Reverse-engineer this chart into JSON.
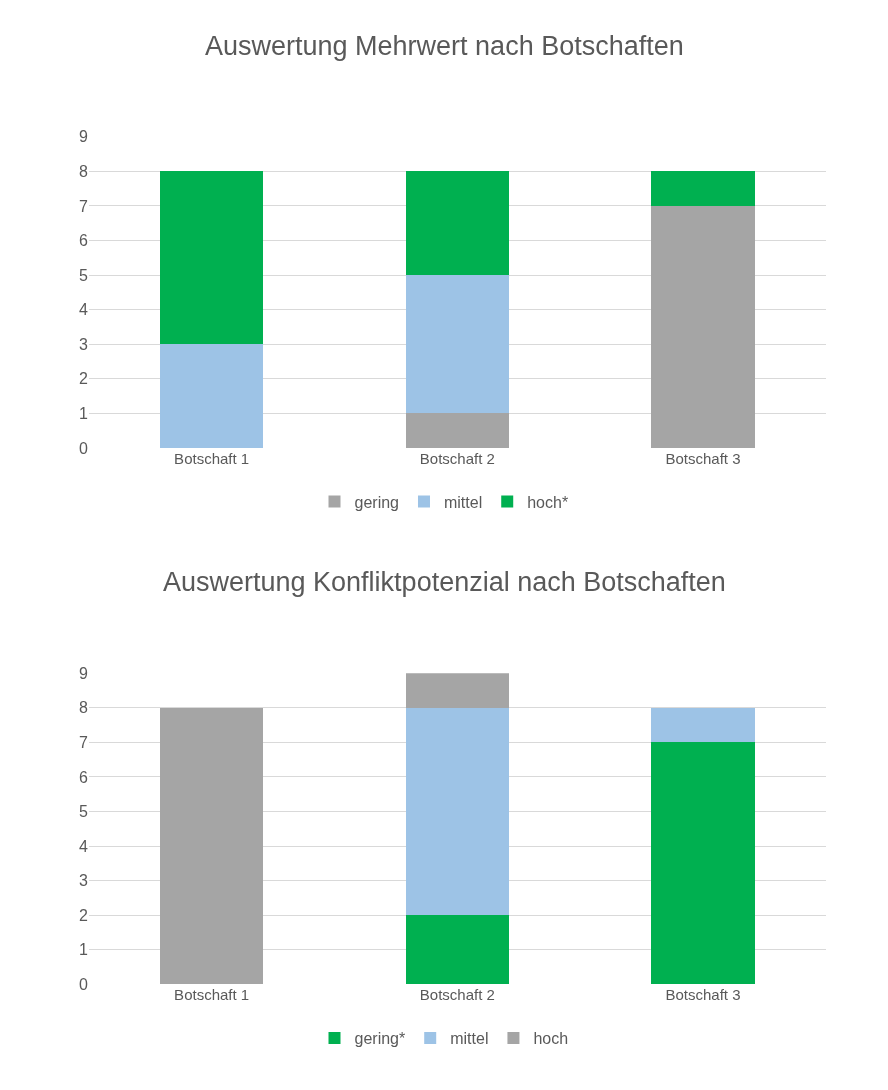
{
  "chart_data": [
    {
      "type": "bar",
      "title": "Auswertung Mehrwert nach Botschaften",
      "categories": [
        "Botschaft 1",
        "Botschaft 2",
        "Botschaft 3"
      ],
      "stacked": true,
      "ylim": [
        0,
        9
      ],
      "yticks": [
        0,
        1,
        2,
        3,
        4,
        5,
        6,
        7,
        8,
        9
      ],
      "grid": "y",
      "legend": "bottom",
      "series": [
        {
          "name": "gering",
          "color": "#a5a5a5",
          "values": [
            0,
            1,
            7
          ]
        },
        {
          "name": "mittel",
          "color": "#9dc3e6",
          "values": [
            3,
            4,
            0
          ]
        },
        {
          "name": "hoch*",
          "color": "#00b050",
          "values": [
            5,
            3,
            1
          ]
        }
      ]
    },
    {
      "type": "bar",
      "title": "Auswertung Konfliktpotenzial nach Botschaften",
      "categories": [
        "Botschaft 1",
        "Botschaft 2",
        "Botschaft 3"
      ],
      "stacked": true,
      "ylim": [
        0,
        9
      ],
      "yticks": [
        0,
        1,
        2,
        3,
        4,
        5,
        6,
        7,
        8,
        9
      ],
      "grid": "y",
      "legend": "bottom",
      "series": [
        {
          "name": "gering*",
          "color": "#00b050",
          "values": [
            0,
            2,
            7
          ]
        },
        {
          "name": "mittel",
          "color": "#9dc3e6",
          "values": [
            0,
            6,
            1
          ]
        },
        {
          "name": "hoch",
          "color": "#a5a5a5",
          "values": [
            8,
            1,
            0
          ]
        }
      ]
    }
  ]
}
